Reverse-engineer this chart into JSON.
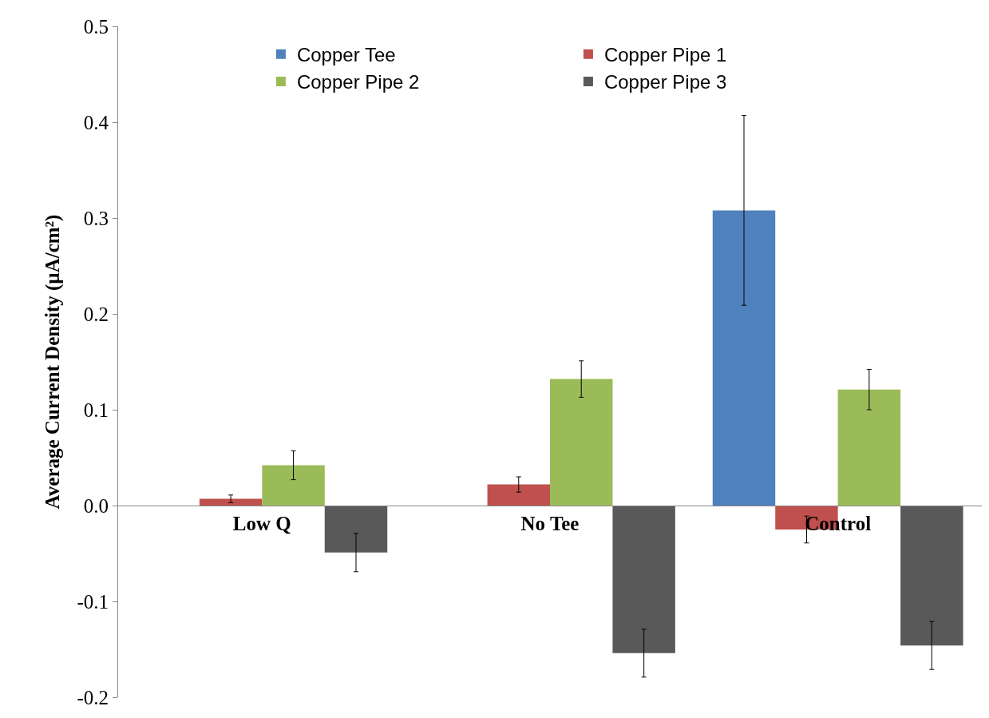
{
  "chart_data": {
    "type": "bar",
    "ylabel": "Average Current Density (µA/cm²)",
    "categories": [
      "Low Q",
      "No Tee",
      "Control"
    ],
    "series": [
      {
        "name": "Copper Tee",
        "color": "#4f81bd",
        "values": [
          null,
          null,
          0.308
        ],
        "errors": [
          null,
          null,
          0.099
        ]
      },
      {
        "name": "Copper Pipe 1",
        "color": "#c0504d",
        "values": [
          0.007,
          0.022,
          -0.025
        ],
        "errors": [
          0.004,
          0.008,
          0.014
        ]
      },
      {
        "name": "Copper Pipe 2",
        "color": "#9bbb59",
        "values": [
          0.042,
          0.132,
          0.121
        ],
        "errors": [
          0.015,
          0.019,
          0.021
        ]
      },
      {
        "name": "Copper Pipe 3",
        "color": "#595959",
        "values": [
          -0.049,
          -0.154,
          -0.146
        ],
        "errors": [
          0.02,
          0.025,
          0.025
        ]
      }
    ],
    "ylim": [
      -0.2,
      0.5
    ],
    "yticks": [
      -0.2,
      -0.1,
      {
        "value": 0,
        "label": "0.0"
      },
      0.1,
      0.2,
      0.3,
      0.4,
      0.5
    ],
    "grid": false,
    "legend": "top"
  }
}
